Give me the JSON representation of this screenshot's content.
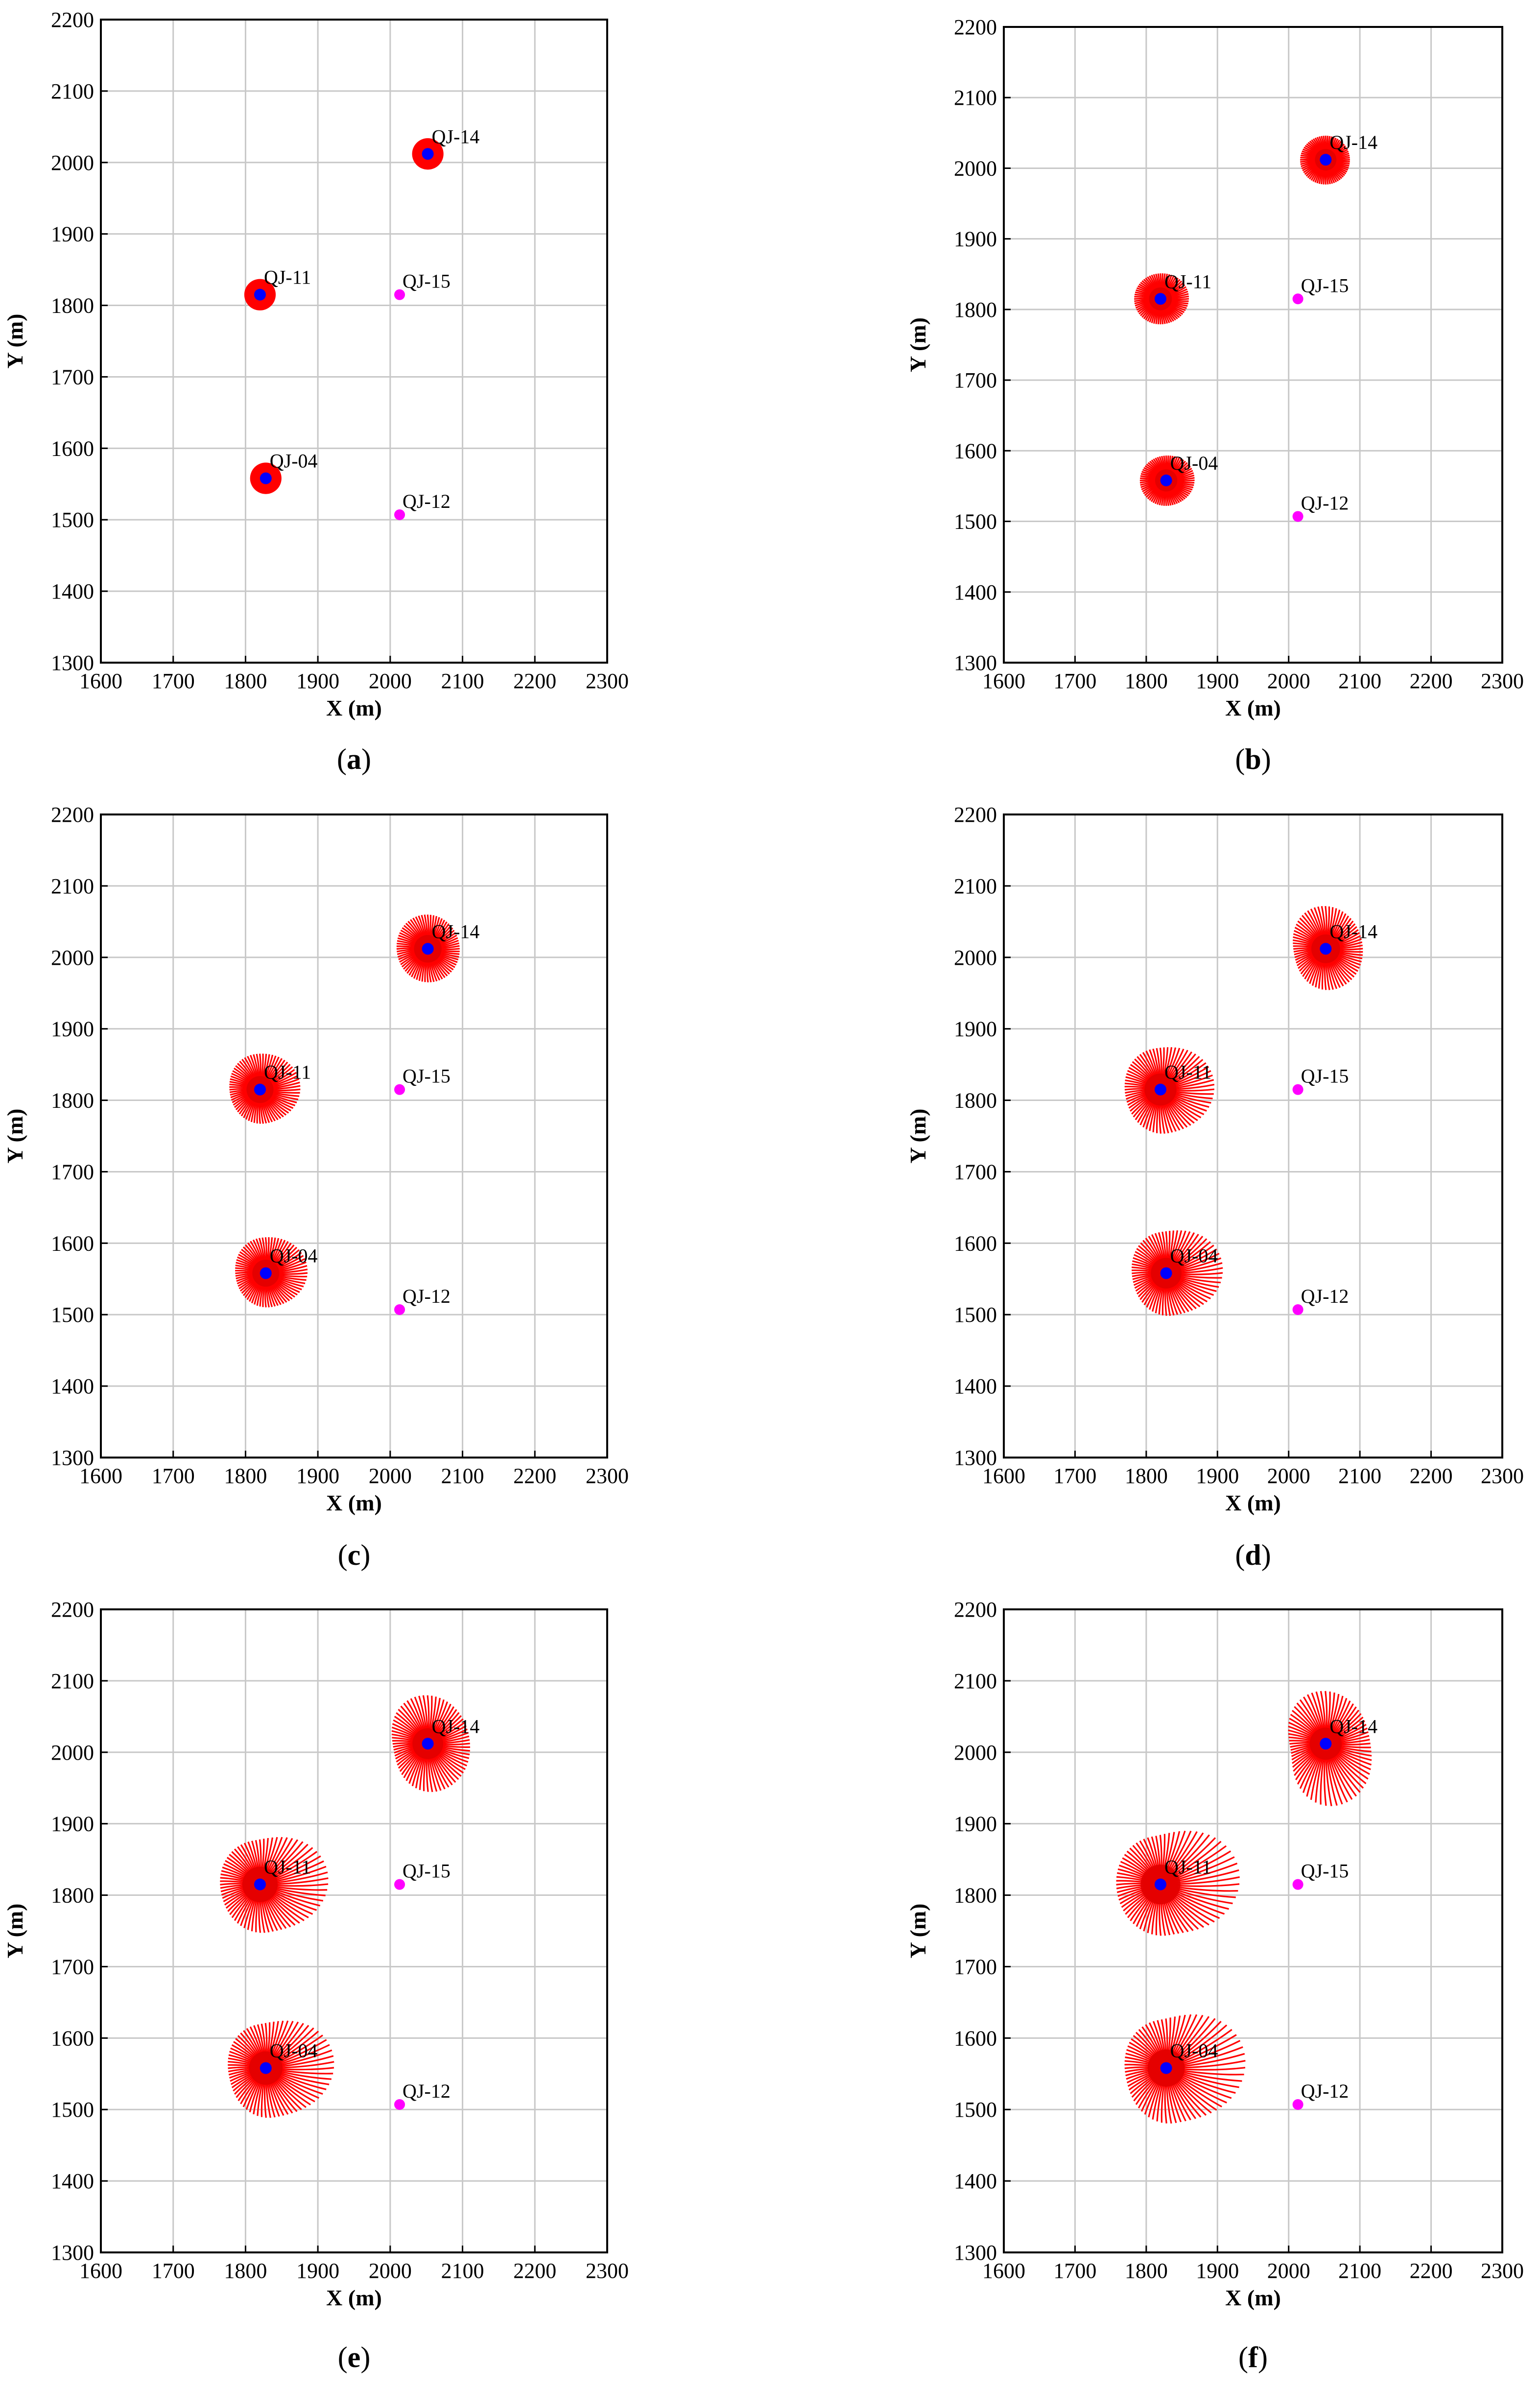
{
  "chart_data": [
    {
      "panel": "a",
      "caption": "(a)",
      "type": "scatter",
      "title": "",
      "xlabel": "X (m)",
      "ylabel": "Y (m)",
      "xlim": [
        1600,
        2300
      ],
      "ylim": [
        1300,
        2200
      ],
      "xticks": [
        "1600",
        "1700",
        "1800",
        "1900",
        "2000",
        "2100",
        "2200",
        "2300"
      ],
      "yticks": [
        "1300",
        "1400",
        "1500",
        "1600",
        "1700",
        "1800",
        "1900",
        "2000",
        "2100",
        "2200"
      ],
      "grid": true,
      "injection_wells": [
        {
          "name": "QJ-14",
          "x": 2052,
          "y": 2012,
          "front_radius": [
            22,
            22,
            22,
            22
          ]
        },
        {
          "name": "QJ-11",
          "x": 1820,
          "y": 1815,
          "front_radius": [
            22,
            22,
            22,
            22
          ]
        },
        {
          "name": "QJ-04",
          "x": 1828,
          "y": 1558,
          "front_radius": [
            22,
            22,
            22,
            22
          ]
        }
      ],
      "production_wells": [
        {
          "name": "QJ-15",
          "x": 2013,
          "y": 1815
        },
        {
          "name": "QJ-12",
          "x": 2013,
          "y": 1507
        }
      ]
    },
    {
      "panel": "b",
      "caption": "(b)",
      "type": "scatter",
      "title": "",
      "xlabel": "X (m)",
      "ylabel": "Y (m)",
      "xlim": [
        1600,
        2300
      ],
      "ylim": [
        1300,
        2200
      ],
      "xticks": [
        "1600",
        "1700",
        "1800",
        "1900",
        "2000",
        "2100",
        "2200",
        "2300"
      ],
      "yticks": [
        "1300",
        "1400",
        "1500",
        "1600",
        "1700",
        "1800",
        "1900",
        "2000",
        "2100",
        "2200"
      ],
      "grid": true,
      "injection_wells": [
        {
          "name": "QJ-14",
          "x": 2052,
          "y": 2012,
          "front_radius": [
            34,
            34,
            36,
            35
          ]
        },
        {
          "name": "QJ-11",
          "x": 1820,
          "y": 1815,
          "front_radius": [
            40,
            36,
            37,
            36
          ]
        },
        {
          "name": "QJ-04",
          "x": 1828,
          "y": 1558,
          "front_radius": [
            40,
            35,
            37,
            36
          ]
        }
      ],
      "production_wells": [
        {
          "name": "QJ-15",
          "x": 2013,
          "y": 1815
        },
        {
          "name": "QJ-12",
          "x": 2013,
          "y": 1507
        }
      ]
    },
    {
      "panel": "c",
      "caption": "(c)",
      "type": "scatter",
      "title": "",
      "xlabel": "X (m)",
      "ylabel": "Y (m)",
      "xlim": [
        1600,
        2300
      ],
      "ylim": [
        1300,
        2200
      ],
      "xticks": [
        "1600",
        "1700",
        "1800",
        "1900",
        "2000",
        "2100",
        "2200",
        "2300"
      ],
      "yticks": [
        "1300",
        "1400",
        "1500",
        "1600",
        "1700",
        "1800",
        "1900",
        "2000",
        "2100",
        "2200"
      ],
      "grid": true,
      "injection_wells": [
        {
          "name": "QJ-14",
          "x": 2052,
          "y": 2012,
          "front_radius": [
            44,
            48,
            43,
            47
          ]
        },
        {
          "name": "QJ-11",
          "x": 1820,
          "y": 1815,
          "front_radius": [
            56,
            50,
            42,
            48
          ]
        },
        {
          "name": "QJ-04",
          "x": 1828,
          "y": 1558,
          "front_radius": [
            58,
            50,
            42,
            48
          ]
        }
      ],
      "production_wells": [
        {
          "name": "QJ-15",
          "x": 2013,
          "y": 1815
        },
        {
          "name": "QJ-12",
          "x": 2013,
          "y": 1507
        }
      ]
    },
    {
      "panel": "d",
      "caption": "(d)",
      "type": "scatter",
      "title": "",
      "xlabel": "X (m)",
      "ylabel": "Y (m)",
      "xlim": [
        1600,
        2300
      ],
      "ylim": [
        1300,
        2200
      ],
      "xticks": [
        "1600",
        "1700",
        "1800",
        "1900",
        "2000",
        "2100",
        "2200",
        "2300"
      ],
      "yticks": [
        "1300",
        "1400",
        "1500",
        "1600",
        "1700",
        "1800",
        "1900",
        "2000",
        "2100",
        "2200"
      ],
      "grid": true,
      "injection_wells": [
        {
          "name": "QJ-14",
          "x": 2052,
          "y": 2012,
          "front_radius": [
            52,
            60,
            45,
            58
          ]
        },
        {
          "name": "QJ-11",
          "x": 1820,
          "y": 1815,
          "front_radius": [
            76,
            58,
            50,
            62
          ]
        },
        {
          "name": "QJ-04",
          "x": 1828,
          "y": 1558,
          "front_radius": [
            80,
            58,
            48,
            60
          ]
        }
      ],
      "production_wells": [
        {
          "name": "QJ-15",
          "x": 2013,
          "y": 1815
        },
        {
          "name": "QJ-12",
          "x": 2013,
          "y": 1507
        }
      ]
    },
    {
      "panel": "e",
      "caption": "(e)",
      "type": "scatter",
      "title": "",
      "xlabel": "X (m)",
      "ylabel": "Y (m)",
      "xlim": [
        1600,
        2300
      ],
      "ylim": [
        1300,
        2200
      ],
      "xticks": [
        "1600",
        "1700",
        "1800",
        "1900",
        "2000",
        "2100",
        "2200",
        "2300"
      ],
      "yticks": [
        "1300",
        "1400",
        "1500",
        "1600",
        "1700",
        "1800",
        "1900",
        "2000",
        "2100",
        "2200"
      ],
      "grid": true,
      "injection_wells": [
        {
          "name": "QJ-14",
          "x": 2052,
          "y": 2012,
          "front_radius": [
            58,
            68,
            48,
            68
          ]
        },
        {
          "name": "QJ-11",
          "x": 1820,
          "y": 1815,
          "front_radius": [
            95,
            62,
            55,
            68
          ]
        },
        {
          "name": "QJ-04",
          "x": 1828,
          "y": 1558,
          "front_radius": [
            95,
            62,
            52,
            70
          ]
        }
      ],
      "production_wells": [
        {
          "name": "QJ-15",
          "x": 2013,
          "y": 1815
        },
        {
          "name": "QJ-12",
          "x": 2013,
          "y": 1507
        }
      ]
    },
    {
      "panel": "f",
      "caption": "(f)",
      "type": "scatter",
      "title": "",
      "xlabel": "X (m)",
      "ylabel": "Y (m)",
      "xlim": [
        1600,
        2300
      ],
      "ylim": [
        1300,
        2200
      ],
      "xticks": [
        "1600",
        "1700",
        "1800",
        "1900",
        "2000",
        "2100",
        "2200",
        "2300"
      ],
      "yticks": [
        "1300",
        "1400",
        "1500",
        "1600",
        "1700",
        "1800",
        "1900",
        "2000",
        "2100",
        "2200"
      ],
      "grid": true,
      "injection_wells": [
        {
          "name": "QJ-14",
          "x": 2052,
          "y": 2012,
          "front_radius": [
            62,
            74,
            50,
            88
          ]
        },
        {
          "name": "QJ-11",
          "x": 1820,
          "y": 1815,
          "front_radius": [
            112,
            68,
            62,
            72
          ]
        },
        {
          "name": "QJ-04",
          "x": 1828,
          "y": 1558,
          "front_radius": [
            112,
            68,
            58,
            78
          ]
        }
      ],
      "production_wells": [
        {
          "name": "QJ-15",
          "x": 2013,
          "y": 1815
        },
        {
          "name": "QJ-12",
          "x": 2013,
          "y": 1507
        }
      ]
    }
  ],
  "colors": {
    "injection_front": "#ff0000",
    "injection_core": "#e00000",
    "injection_well_marker": "#0000ff",
    "production_well_marker": "#ff00ff",
    "grid": "#c8c8c8",
    "axis": "#000000"
  }
}
